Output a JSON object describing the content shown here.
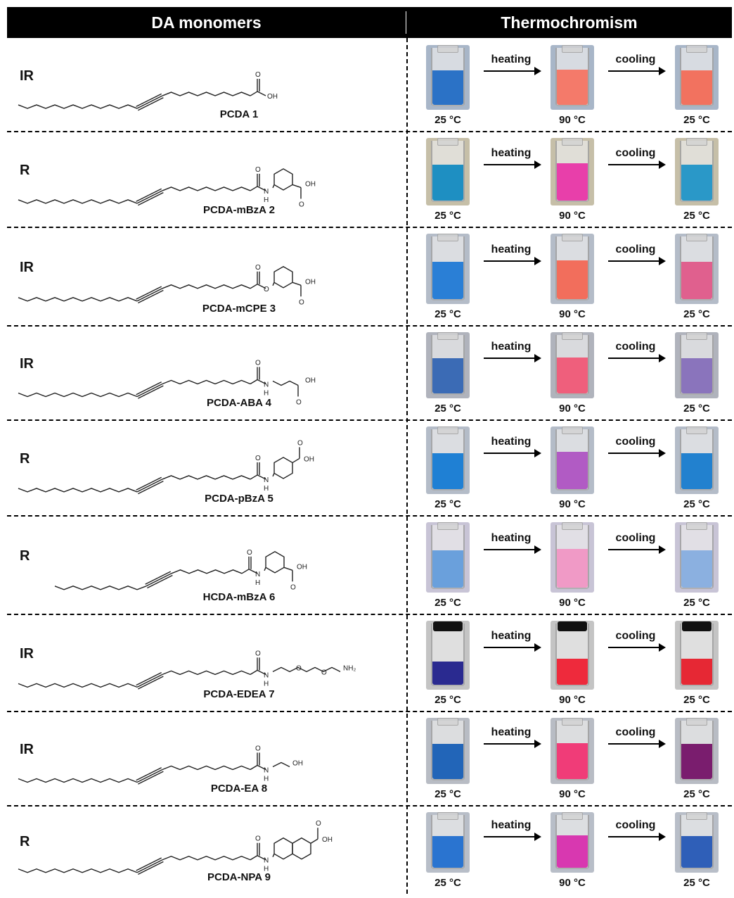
{
  "header": {
    "left_title": "DA monomers",
    "right_title": "Thermochromism"
  },
  "arrow_labels": {
    "heat": "heating",
    "cool": "cooling"
  },
  "temps": {
    "t1": "25 °C",
    "t2": "90 °C",
    "t3": "25 °C"
  },
  "chem_labels": {
    "o": "O",
    "oh": "OH",
    "nh": "H",
    "nh2": "NH₂"
  },
  "rows": [
    {
      "label": "IR",
      "name": "PCDA 1",
      "tail": "acid",
      "colors": {
        "bg": "#a8b6c8",
        "c1": "#2b72c6",
        "c2": "#f47a6a",
        "c3": "#f2725f"
      },
      "cap": false
    },
    {
      "label": "R",
      "name": "PCDA-mBzA 2",
      "tail": "mbza",
      "colors": {
        "bg": "#c6bfa8",
        "c1": "#1e8fc2",
        "c2": "#e83faa",
        "c3": "#2a98c8"
      },
      "cap": false
    },
    {
      "label": "IR",
      "name": "PCDA-mCPE 3",
      "tail": "mcpe",
      "colors": {
        "bg": "#b4bcc8",
        "c1": "#2a7fd6",
        "c2": "#f26e5c",
        "c3": "#e0608e"
      },
      "cap": false
    },
    {
      "label": "IR",
      "name": "PCDA-ABA 4",
      "tail": "aba",
      "colors": {
        "bg": "#b0b3bc",
        "c1": "#3b6bb5",
        "c2": "#ef5f7c",
        "c3": "#8a74bc"
      },
      "cap": false
    },
    {
      "label": "R",
      "name": "PCDA-pBzA 5",
      "tail": "pbza",
      "colors": {
        "bg": "#b4bcc8",
        "c1": "#1f80d4",
        "c2": "#b15bc4",
        "c3": "#2281cf"
      },
      "cap": false
    },
    {
      "label": "R",
      "name": "HCDA-mBzA 6",
      "tail": "mbza6",
      "colors": {
        "bg": "#c8c4d6",
        "c1": "#6aa0dc",
        "c2": "#f09ac6",
        "c3": "#8bb0e0"
      },
      "cap": false
    },
    {
      "label": "IR",
      "name": "PCDA-EDEA 7",
      "tail": "edea",
      "colors": {
        "bg": "#c4c4c4",
        "c1": "#2a2a90",
        "c2": "#ee2a3c",
        "c3": "#e62834"
      },
      "cap": true
    },
    {
      "label": "IR",
      "name": "PCDA-EA 8",
      "tail": "ea",
      "colors": {
        "bg": "#b8bcc4",
        "c1": "#2265b8",
        "c2": "#f03c78",
        "c3": "#7a1d6e"
      },
      "cap": false
    },
    {
      "label": "R",
      "name": "PCDA-NPA 9",
      "tail": "npa",
      "colors": {
        "bg": "#b8bec8",
        "c1": "#2a74d0",
        "c2": "#d838b0",
        "c3": "#2f5fb8"
      },
      "cap": false
    }
  ]
}
